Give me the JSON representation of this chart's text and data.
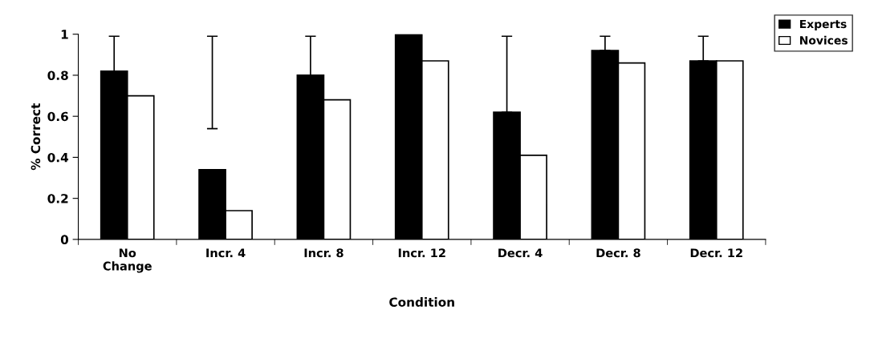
{
  "chart_data": {
    "type": "bar",
    "xlabel": "Condition",
    "ylabel": "% Correct",
    "categories": [
      "No\nChange",
      "Incr. 4",
      "Incr. 8",
      "Incr. 12",
      "Decr. 4",
      "Decr. 8",
      "Decr. 12"
    ],
    "series": [
      {
        "name": "Experts",
        "color": "#000000",
        "values": [
          0.82,
          0.34,
          0.8,
          1,
          0.62,
          0.92,
          0.87
        ],
        "errors": [
          [
            0.82,
            0.99
          ],
          [
            0.54,
            0.99
          ],
          [
            0.8,
            0.99
          ],
          null,
          [
            0.62,
            0.99
          ],
          [
            0.92,
            0.99
          ],
          [
            0.87,
            0.99
          ]
        ]
      },
      {
        "name": "Novices",
        "color": "#ffffff",
        "values": [
          0.7,
          0.14,
          0.68,
          0.87,
          0.41,
          0.86,
          0.87
        ]
      }
    ],
    "ylim": [
      0,
      1
    ],
    "yticks": [
      0,
      0.2,
      0.4,
      0.6,
      0.8,
      1
    ],
    "grid": false,
    "legend": "top right"
  }
}
